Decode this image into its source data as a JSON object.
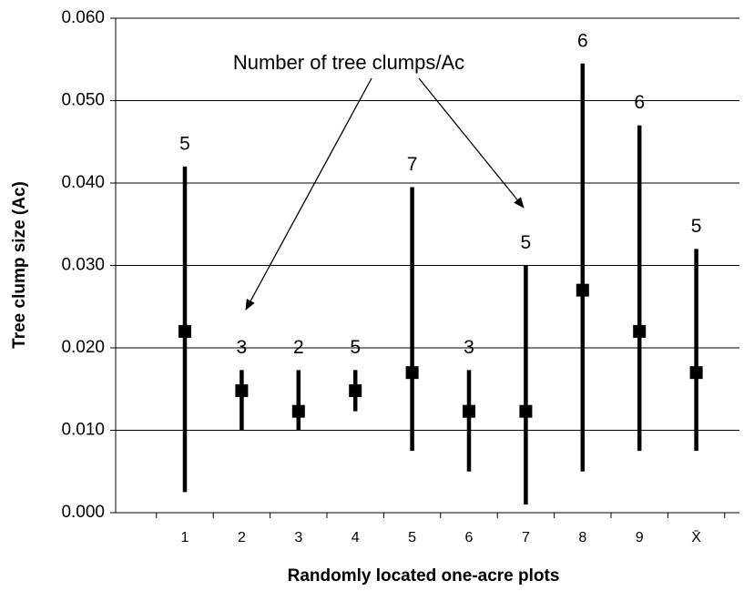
{
  "chart_data": {
    "type": "errorbar",
    "x_label": "Randomly located one-acre plots",
    "y_label": "Tree clump size (Ac)",
    "annotation": "Number of tree clumps/Ac",
    "categories": [
      "1",
      "2",
      "3",
      "4",
      "5",
      "6",
      "7",
      "8",
      "9",
      "X̄"
    ],
    "means": [
      0.022,
      0.0148,
      0.0123,
      0.0148,
      0.017,
      0.0123,
      0.0123,
      0.027,
      0.022,
      0.017
    ],
    "lows": [
      0.0025,
      0.01,
      0.01,
      0.0123,
      0.0075,
      0.005,
      0.001,
      0.005,
      0.0075,
      0.0075
    ],
    "highs": [
      0.042,
      0.0173,
      0.0173,
      0.0173,
      0.0395,
      0.0173,
      0.03,
      0.0545,
      0.047,
      0.032
    ],
    "counts": [
      5,
      3,
      2,
      5,
      7,
      3,
      5,
      6,
      6,
      5
    ],
    "color": "#000000",
    "ylim": [
      0,
      0.06
    ],
    "yticks": [
      {
        "value": 0,
        "label": "0.000"
      },
      {
        "value": 0.01,
        "label": "0.010"
      },
      {
        "value": 0.02,
        "label": "0.020"
      },
      {
        "value": 0.03,
        "label": "0.030"
      },
      {
        "value": 0.04,
        "label": "0.040"
      },
      {
        "value": 0.05,
        "label": "0.050"
      },
      {
        "value": 0.06,
        "label": "0.060"
      }
    ],
    "grid": true
  }
}
